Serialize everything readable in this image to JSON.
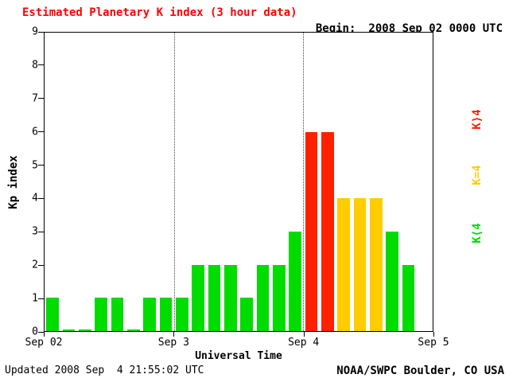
{
  "header": {
    "title": "Estimated Planetary K index (3 hour data)",
    "begin_label": "Begin:",
    "begin_value": "2008 Sep 02 0000 UTC"
  },
  "chart_data": {
    "type": "bar",
    "title": "Estimated Planetary K index (3 hour data)",
    "xlabel": "Universal Time",
    "ylabel": "Kp index",
    "ylim": [
      0,
      9
    ],
    "y_ticks": [
      "0",
      "1",
      "2",
      "3",
      "4",
      "5",
      "6",
      "7",
      "8",
      "9"
    ],
    "x_ticks": [
      "Sep 02",
      "Sep 3",
      "Sep 4",
      "Sep 5"
    ],
    "days": 3,
    "bars_per_day": 8,
    "interval_hours": 3,
    "grid": "dotted vertical lines at day boundaries",
    "values": [
      1,
      0,
      0,
      1,
      1,
      0,
      1,
      1,
      1,
      2,
      2,
      2,
      1,
      2,
      2,
      3,
      6,
      6,
      4,
      4,
      4,
      3,
      2
    ],
    "color_rule": {
      "lt4": "#00dc00",
      "eq4": "#ffcc00",
      "gt4": "#ff2000"
    },
    "legend": [
      {
        "label": "K>4",
        "display": "K⟩4",
        "color": "#ff2000"
      },
      {
        "label": "K=4",
        "display": "K=4",
        "color": "#ffcc00"
      },
      {
        "label": "K<4",
        "display": "K⟨4",
        "color": "#00dc00"
      }
    ],
    "legend_position": "right"
  },
  "colors": {
    "title": "#ff0000",
    "axis": "#000000",
    "background": "#ffffff"
  },
  "footer": {
    "updated": "Updated 2008 Sep  4 21:55:02 UTC",
    "attribution": "NOAA/SWPC Boulder, CO USA"
  }
}
